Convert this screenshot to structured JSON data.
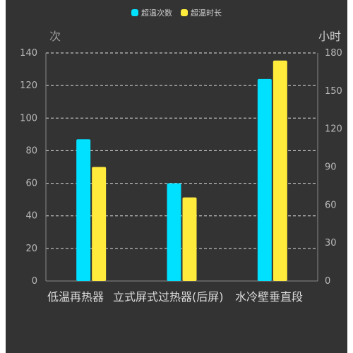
{
  "legend": {
    "series_0": "超温次数",
    "series_1": "超温时长"
  },
  "axes": {
    "left_title": "次",
    "right_title": "小时"
  },
  "colors": {
    "background": "#333333",
    "series_0": "#00e0ff",
    "series_1": "#ffeb3b",
    "grid": "#ffffff",
    "axis": "#888888"
  },
  "chart_data": {
    "type": "bar",
    "categories": [
      "低温再热器",
      "立式屏式过热器(后屏)",
      "水冷壁垂直段"
    ],
    "series": [
      {
        "name": "超温次数",
        "axis": "left",
        "values": [
          87,
          60,
          124
        ]
      },
      {
        "name": "超温时长",
        "axis": "right",
        "values": [
          90,
          66,
          174
        ]
      }
    ],
    "y_left": {
      "label": "次",
      "min": 0,
      "max": 140,
      "ticks": [
        0,
        20,
        40,
        60,
        80,
        100,
        120,
        140
      ]
    },
    "y_right": {
      "label": "小时",
      "min": 0,
      "max": 180,
      "ticks": [
        0,
        30,
        60,
        90,
        120,
        150,
        180
      ]
    },
    "grid": true,
    "legend_position": "top-center"
  }
}
